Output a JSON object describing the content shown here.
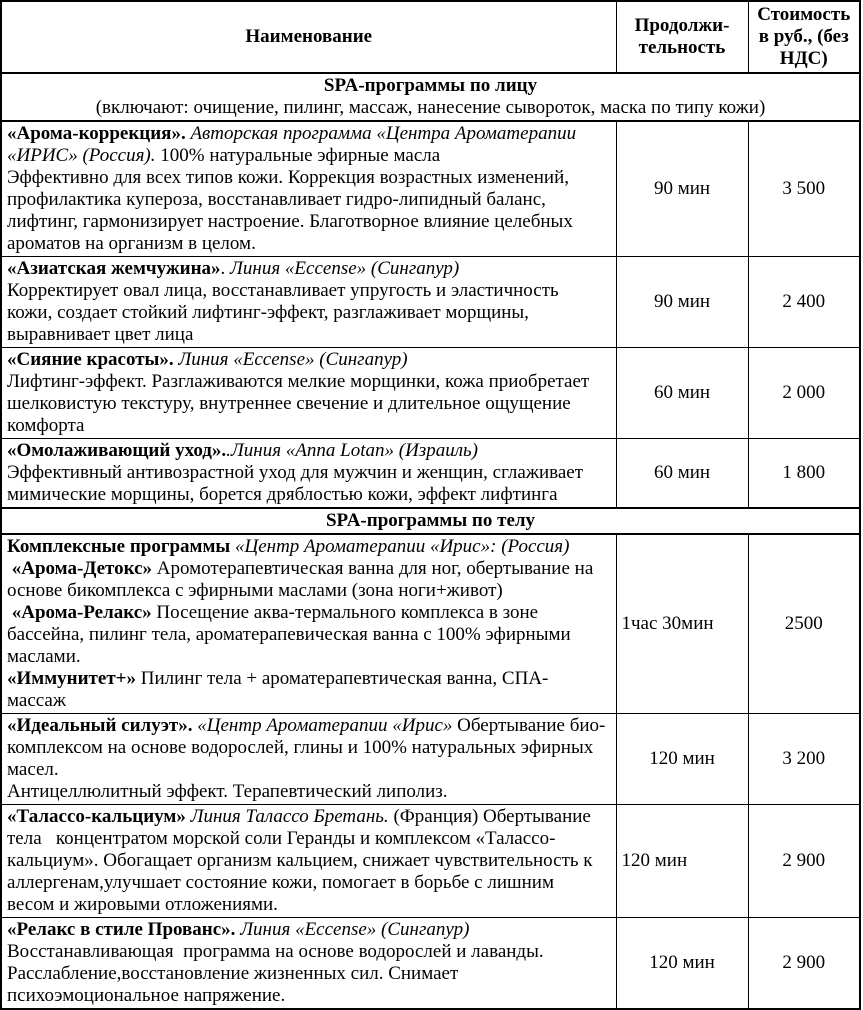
{
  "table": {
    "headers": {
      "name": "Наименование",
      "duration": "Продолжи-тельность",
      "price": "Стоимость в руб., (без НДС)"
    },
    "sections": [
      {
        "title": "SPA-программы по лицу",
        "subtitle": "(включают: очищение, пилинг, массаж, нанесение сывороток, маска по типу кожи)",
        "rows": [
          {
            "duration": "90 мин",
            "price": "3 500",
            "duration_align": "center",
            "paragraphs": [
              [
                {
                  "style": "bold",
                  "text": "«Арома-коррекция». "
                },
                {
                  "style": "italic",
                  "text": "Авторская программа «Центра Ароматерапии «ИРИС» (Россия). "
                },
                {
                  "style": "normal",
                  "text": "100% натуральные эфирные масла"
                }
              ],
              [
                {
                  "style": "normal",
                  "text": "Эффективно для всех типов кожи. Коррекция возрастных изменений, профилактика купероза, восстанавливает гидро-липидный баланс, лифтинг, гармонизирует настроение. Благотворное влияние целебных ароматов на организм в целом."
                }
              ]
            ]
          },
          {
            "duration": "90 мин",
            "price": "2 400",
            "duration_align": "center",
            "paragraphs": [
              [
                {
                  "style": "bold",
                  "text": "«Азиатская жемчужина»"
                },
                {
                  "style": "normal",
                  "text": ". "
                },
                {
                  "style": "italic",
                  "text": "Линия «Eccense» (Сингапур)"
                }
              ],
              [
                {
                  "style": "normal",
                  "text": "Корректирует овал лица, восстанавливает упругость и эластичность кожи, создает стойкий лифтинг-эффект, разглаживает морщины, выравнивает цвет лица"
                }
              ]
            ]
          },
          {
            "duration": "60 мин",
            "price": "2 000",
            "duration_align": "center",
            "paragraphs": [
              [
                {
                  "style": "bold",
                  "text": "«Сияние красоты». "
                },
                {
                  "style": "italic",
                  "text": "Линия «Eccense» (Сингапур)"
                }
              ],
              [
                {
                  "style": "normal",
                  "text": "Лифтинг-эффект. Разглаживаются мелкие морщинки, кожа приобретает шелковистую текстуру, внутреннее свечение и длительное ощущение комфорта"
                }
              ]
            ]
          },
          {
            "duration": "60 мин",
            "price": "1 800",
            "duration_align": "center",
            "paragraphs": [
              [
                {
                  "style": "bold",
                  "text": "«Омолаживающий уход»."
                },
                {
                  "style": "italic",
                  "text": ".Линия «Anna Lotan» (Израиль)"
                }
              ],
              [
                {
                  "style": "normal",
                  "text": "Эффективный антивозрастной уход для мужчин и женщин, сглаживает мимические морщины, борется дряблостью кожи, эффект лифтинга"
                }
              ]
            ]
          }
        ]
      },
      {
        "title": "SPA-программы по телу",
        "subtitle": "",
        "rows": [
          {
            "duration": "1час 30мин",
            "price": "2500",
            "duration_align": "left",
            "paragraphs": [
              [
                {
                  "style": "bold",
                  "text": "Комплексные программы "
                },
                {
                  "style": "italic",
                  "text": "«Центр Ароматерапии «Ирис»: (Россия)"
                }
              ],
              [
                {
                  "style": "bold",
                  "text": " «Арома-Детокс» "
                },
                {
                  "style": "normal",
                  "text": "Аромотерапевтическая ванна для ног, обертывание на основе бикомплекса с эфирными маслами (зона ноги+живот)"
                }
              ],
              [
                {
                  "style": "bold",
                  "text": " «Арома-Релакс» "
                },
                {
                  "style": "normal",
                  "text": "Посещение аква-термального комплекса в зоне бассейна, пилинг тела, ароматерапевическая ванна с 100% эфирными маслами."
                }
              ],
              [
                {
                  "style": "bold",
                  "text": "«Иммунитет+» "
                },
                {
                  "style": "normal",
                  "text": "Пилинг тела + ароматерапевтическая ванна, СПА-массаж"
                }
              ]
            ]
          },
          {
            "duration": "120 мин",
            "price": "3 200",
            "duration_align": "center",
            "paragraphs": [
              [
                {
                  "style": "bold",
                  "text": "«Идеальный силуэт». "
                },
                {
                  "style": "italic",
                  "text": "«Центр Ароматерапии «Ирис» "
                },
                {
                  "style": "normal",
                  "text": "Обертывание био-комплексом на основе водорослей, глины и 100% натуральных эфирных масел."
                }
              ],
              [
                {
                  "style": "normal",
                  "text": "Антицеллюлитный эффект. Терапевтический липолиз."
                }
              ]
            ]
          },
          {
            "duration": "120 мин",
            "price": "2 900",
            "duration_align": "left",
            "paragraphs": [
              [
                {
                  "style": "bold",
                  "text": "«Талассо-кальциум» "
                },
                {
                  "style": "italic",
                  "text": "Линия Талассо Бретань. "
                },
                {
                  "style": "normal",
                  "text": "(Франция) Обертывание тела   концентратом морской соли Геранды и комплексом «Талассо-кальциум». Обогащает организм кальцием, снижает чувствительность к аллергенам,улучшает состояние кожи, помогает в борьбе с лишним весом и жировыми отложениями."
                }
              ]
            ]
          },
          {
            "duration": "120 мин",
            "price": "2 900",
            "duration_align": "center",
            "paragraphs": [
              [
                {
                  "style": "bold",
                  "text": "«Релакс в стиле Прованс». "
                },
                {
                  "style": "italic",
                  "text": "Линия «Eccense» (Сингапур)"
                }
              ],
              [
                {
                  "style": "normal",
                  "text": "Восстанавливающая  программа на основе водорослей и лаванды. Расслабление,восстановление жизненных сил. Снимает психоэмоциональное напряжение."
                }
              ]
            ]
          }
        ]
      }
    ]
  }
}
